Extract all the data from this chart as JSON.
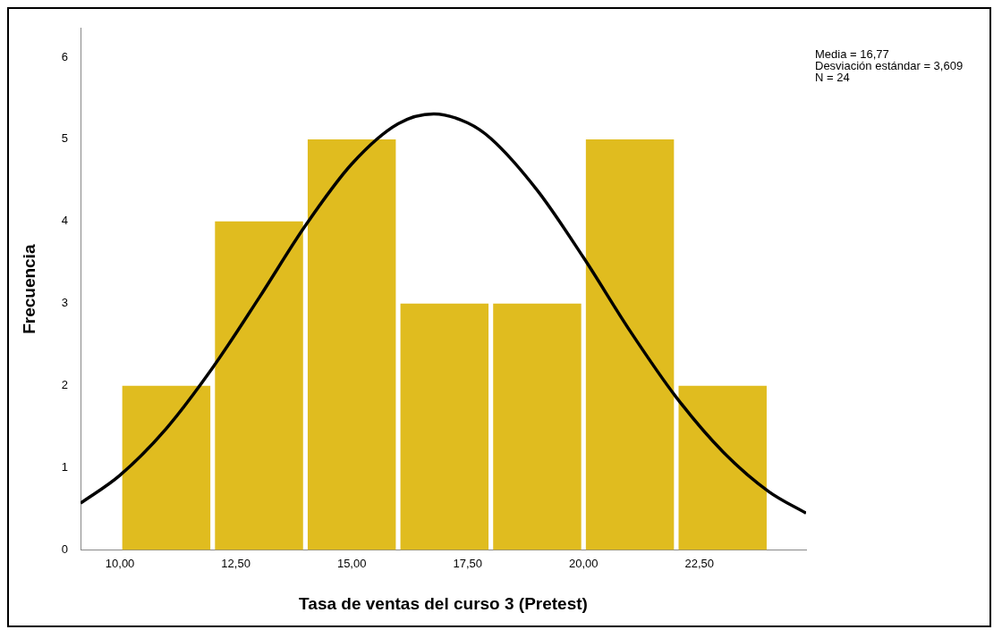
{
  "chart_data": {
    "type": "histogram",
    "xlabel": "Tasa de ventas del curso 3 (Pretest)",
    "ylabel": "Frecuencia",
    "bins": [
      10,
      12,
      14,
      16,
      18,
      20,
      22,
      24
    ],
    "values": [
      2,
      4,
      5,
      3,
      3,
      5,
      2
    ],
    "color": "#e0bc1f",
    "xlim": [
      9.15,
      24.8
    ],
    "ylim": [
      0,
      6.35
    ],
    "xticks": [
      {
        "value": 10,
        "label": "10,00"
      },
      {
        "value": 12.5,
        "label": "12,50"
      },
      {
        "value": 15,
        "label": "15,00"
      },
      {
        "value": 17.5,
        "label": "17,50"
      },
      {
        "value": 20,
        "label": "20,00"
      },
      {
        "value": 22.5,
        "label": "22,50"
      }
    ],
    "yticks": [
      0,
      1,
      2,
      3,
      4,
      5,
      6
    ],
    "grid": false,
    "series": [
      {
        "type": "line",
        "color": "#000000",
        "marker": "none",
        "x": [
          9.15,
          10,
          11,
          12,
          13,
          14,
          15,
          16,
          16.77,
          17.5,
          18,
          19,
          20,
          21,
          22,
          23,
          24,
          24.8
        ],
        "values": [
          0.57,
          0.91,
          1.48,
          2.22,
          3.07,
          3.95,
          4.7,
          5.19,
          5.31,
          5.2,
          5.01,
          4.38,
          3.56,
          2.67,
          1.86,
          1.2,
          0.71,
          0.45
        ]
      }
    ],
    "annotations": [
      "Media = 16,77",
      "Desviación estándar = 3,609",
      "N = 24"
    ]
  }
}
